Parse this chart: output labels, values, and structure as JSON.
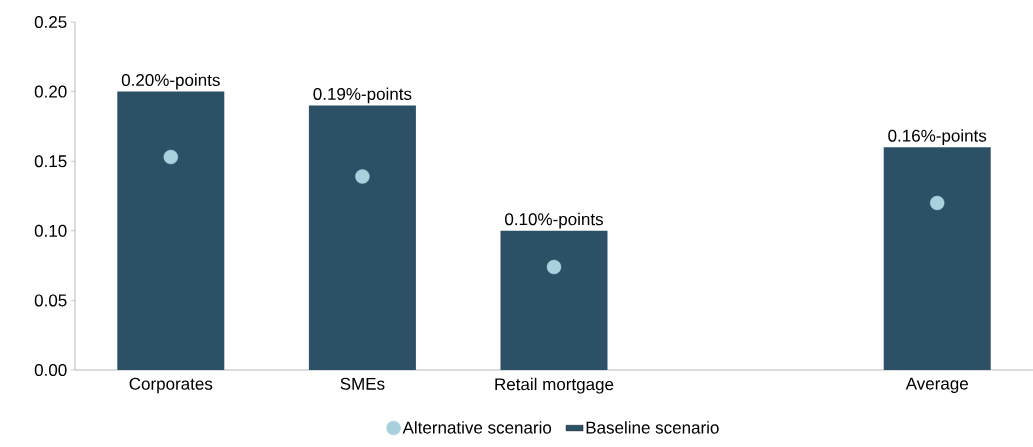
{
  "chart_data": {
    "type": "bar",
    "categories": [
      "Corporates",
      "SMEs",
      "Retail mortgage",
      null,
      "Average"
    ],
    "series": [
      {
        "name": "Alternative scenario",
        "type": "scatter",
        "color": "#a9d1dd",
        "values": [
          0.153,
          0.139,
          0.074,
          null,
          0.12
        ]
      },
      {
        "name": "Baseline scenario",
        "color": "#2c5066",
        "values": [
          0.2,
          0.19,
          0.1,
          null,
          0.16
        ],
        "value_labels": [
          "0.20%-points",
          "0.19%-points",
          "0.10%-points",
          null,
          "0.16%-points"
        ]
      }
    ],
    "ylim": [
      0,
      0.25
    ],
    "yticks": [
      {
        "value": 0,
        "label": "0.00"
      },
      {
        "value": 0.05,
        "label": "0.05"
      },
      {
        "value": 0.1,
        "label": "0.10"
      },
      {
        "value": 0.15,
        "label": "0.15"
      },
      {
        "value": 0.2,
        "label": "0.20"
      },
      {
        "value": 0.25,
        "label": "0.25"
      }
    ],
    "legend": "bottom",
    "marker": "circle"
  }
}
